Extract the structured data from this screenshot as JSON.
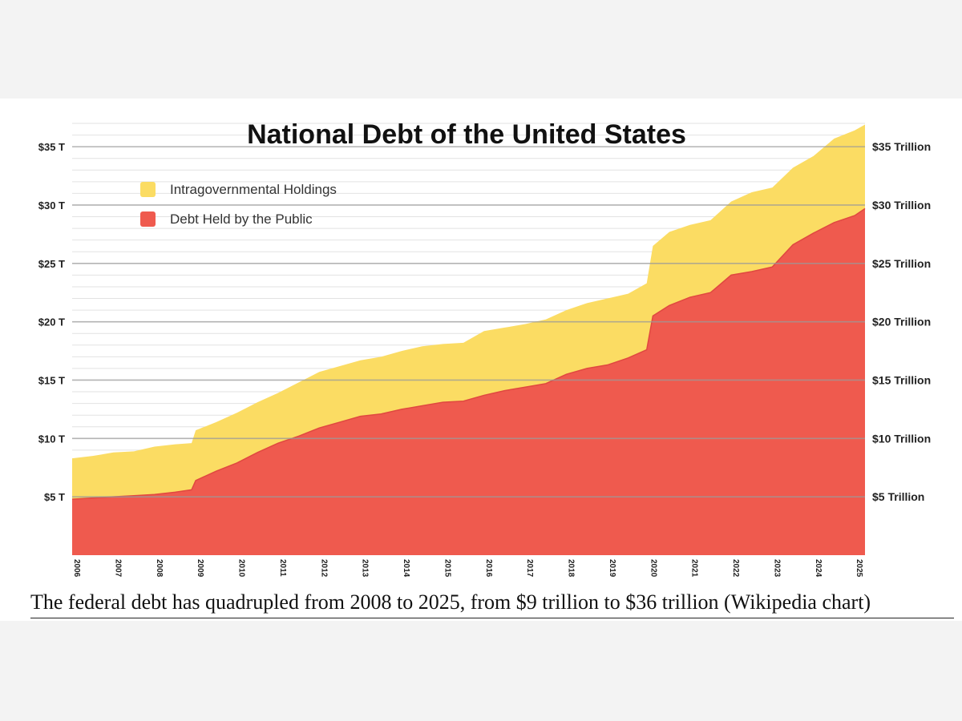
{
  "caption": "The federal debt has quadrupled from 2008 to 2025, from $9 trillion to $36 trillion (Wikipedia chart)",
  "colors": {
    "intragovernmental": "#fbdc63",
    "public": "#ef5a4e",
    "public_edge": "#e04840",
    "major_grid": "#9a9a9a",
    "minor_grid": "#e2e2e2"
  },
  "chart_data": {
    "type": "area",
    "stacked": true,
    "title": "National Debt of the United States",
    "xlabel": "",
    "ylabel": "",
    "x_ticks": [
      "2006",
      "2007",
      "2008",
      "2009",
      "2010",
      "2011",
      "2012",
      "2013",
      "2014",
      "2015",
      "2016",
      "2017",
      "2018",
      "2019",
      "2020",
      "2021",
      "2022",
      "2023",
      "2024",
      "2025"
    ],
    "x_range": [
      2006,
      2025.25
    ],
    "ylim": [
      0,
      37
    ],
    "y_ticks_left": [
      "$5 T",
      "$10 T",
      "$15 T",
      "$20 T",
      "$25 T",
      "$30 T",
      "$35 T"
    ],
    "y_ticks_right": [
      "$5 Trillion",
      "$10 Trillion",
      "$15 Trillion",
      "$20 Trillion",
      "$25 Trillion",
      "$30 Trillion",
      "$35 Trillion"
    ],
    "y_tick_values": [
      5,
      10,
      15,
      20,
      25,
      30,
      35
    ],
    "grid": true,
    "legend_position": "top-left",
    "x": [
      2006,
      2006.5,
      2007,
      2007.5,
      2008,
      2008.5,
      2008.9,
      2009,
      2009.5,
      2010,
      2010.5,
      2011,
      2011.5,
      2012,
      2012.5,
      2013,
      2013.5,
      2014,
      2014.5,
      2015,
      2015.5,
      2016,
      2016.5,
      2017,
      2017.5,
      2018,
      2018.5,
      2019,
      2019.5,
      2019.95,
      2020.1,
      2020.5,
      2021,
      2021.5,
      2022,
      2022.5,
      2023,
      2023.5,
      2024,
      2024.5,
      2025,
      2025.25
    ],
    "series": [
      {
        "name": "Debt Held by the Public",
        "values": [
          4.8,
          4.9,
          5.0,
          5.1,
          5.2,
          5.4,
          5.6,
          6.4,
          7.2,
          7.9,
          8.8,
          9.6,
          10.2,
          10.9,
          11.4,
          11.9,
          12.1,
          12.5,
          12.8,
          13.1,
          13.2,
          13.7,
          14.1,
          14.4,
          14.7,
          15.5,
          16.0,
          16.3,
          16.9,
          17.6,
          20.5,
          21.4,
          22.1,
          22.5,
          24.0,
          24.3,
          24.7,
          26.6,
          27.6,
          28.5,
          29.1,
          29.7
        ]
      },
      {
        "name": "Intragovernmental Holdings",
        "values": [
          3.5,
          3.6,
          3.8,
          3.8,
          4.1,
          4.1,
          4.0,
          4.3,
          4.2,
          4.3,
          4.3,
          4.3,
          4.6,
          4.8,
          4.8,
          4.8,
          4.9,
          5.0,
          5.1,
          5.0,
          5.0,
          5.5,
          5.4,
          5.4,
          5.5,
          5.5,
          5.6,
          5.7,
          5.5,
          5.7,
          6.0,
          6.3,
          6.2,
          6.2,
          6.3,
          6.8,
          6.8,
          6.6,
          6.6,
          7.2,
          7.3,
          7.2
        ]
      }
    ],
    "legend": [
      "Intragovernmental Holdings",
      "Debt Held by the Public"
    ]
  }
}
